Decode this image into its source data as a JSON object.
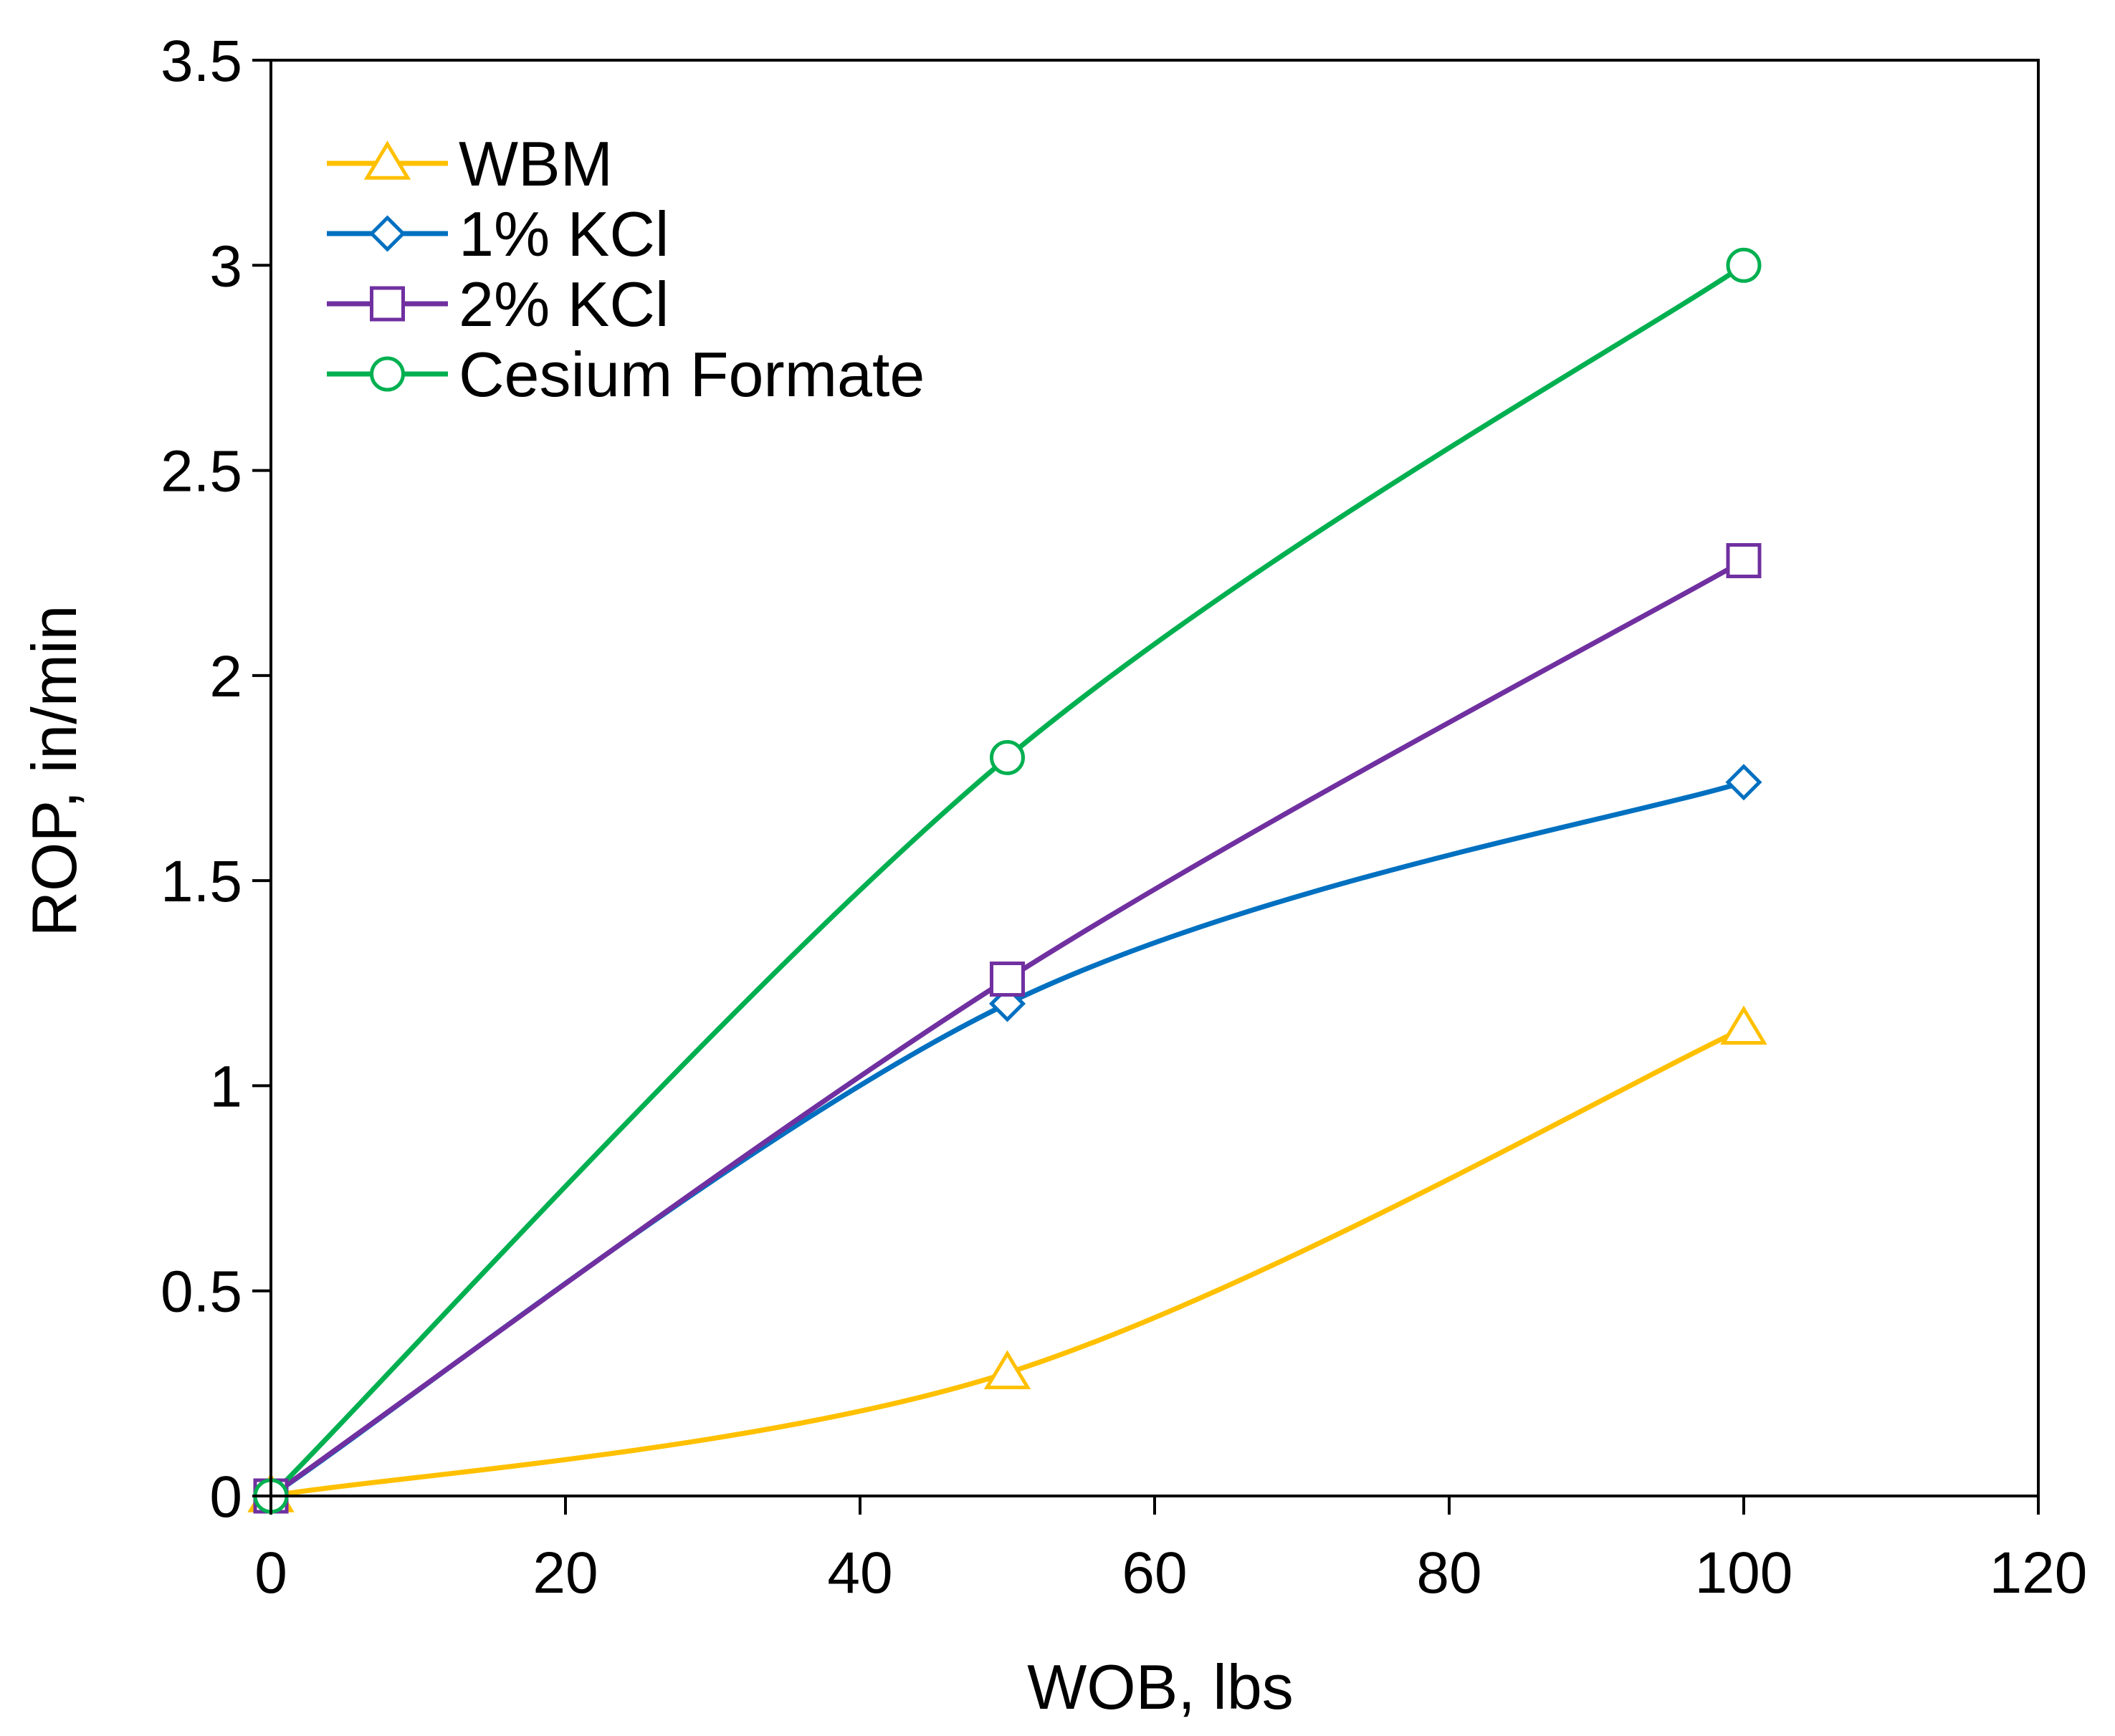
{
  "chart_data": {
    "type": "line",
    "title": "",
    "xlabel": "WOB, lbs",
    "ylabel": "ROP, in/min",
    "xlim": [
      0,
      120
    ],
    "ylim": [
      0,
      3.5
    ],
    "x_ticks": [
      0,
      20,
      40,
      60,
      80,
      100,
      120
    ],
    "y_ticks": [
      0,
      0.5,
      1,
      1.5,
      2,
      2.5,
      3,
      3.5
    ],
    "x_tick_labels": [
      "0",
      "20",
      "40",
      "60",
      "80",
      "100",
      "120"
    ],
    "y_tick_labels": [
      "0",
      "0.5",
      "1",
      "1.5",
      "2",
      "2.5",
      "3",
      "3.5"
    ],
    "grid": false,
    "legend_position": "top-left",
    "smoothed": true,
    "series": [
      {
        "name": "WBM",
        "color": "#FFC000",
        "marker": "triangle",
        "x": [
          0,
          50,
          100
        ],
        "y": [
          0,
          0.3,
          1.14
        ]
      },
      {
        "name": "1% KCl",
        "color": "#0070C0",
        "marker": "diamond",
        "x": [
          0,
          50,
          100
        ],
        "y": [
          0,
          1.2,
          1.74
        ]
      },
      {
        "name": "2% KCl",
        "color": "#7030A0",
        "marker": "square",
        "x": [
          0,
          50,
          100
        ],
        "y": [
          0,
          1.26,
          2.28
        ]
      },
      {
        "name": "Cesium Formate",
        "color": "#00B050",
        "marker": "circle",
        "x": [
          0,
          50,
          100
        ],
        "y": [
          0,
          1.8,
          3.0
        ]
      }
    ]
  }
}
